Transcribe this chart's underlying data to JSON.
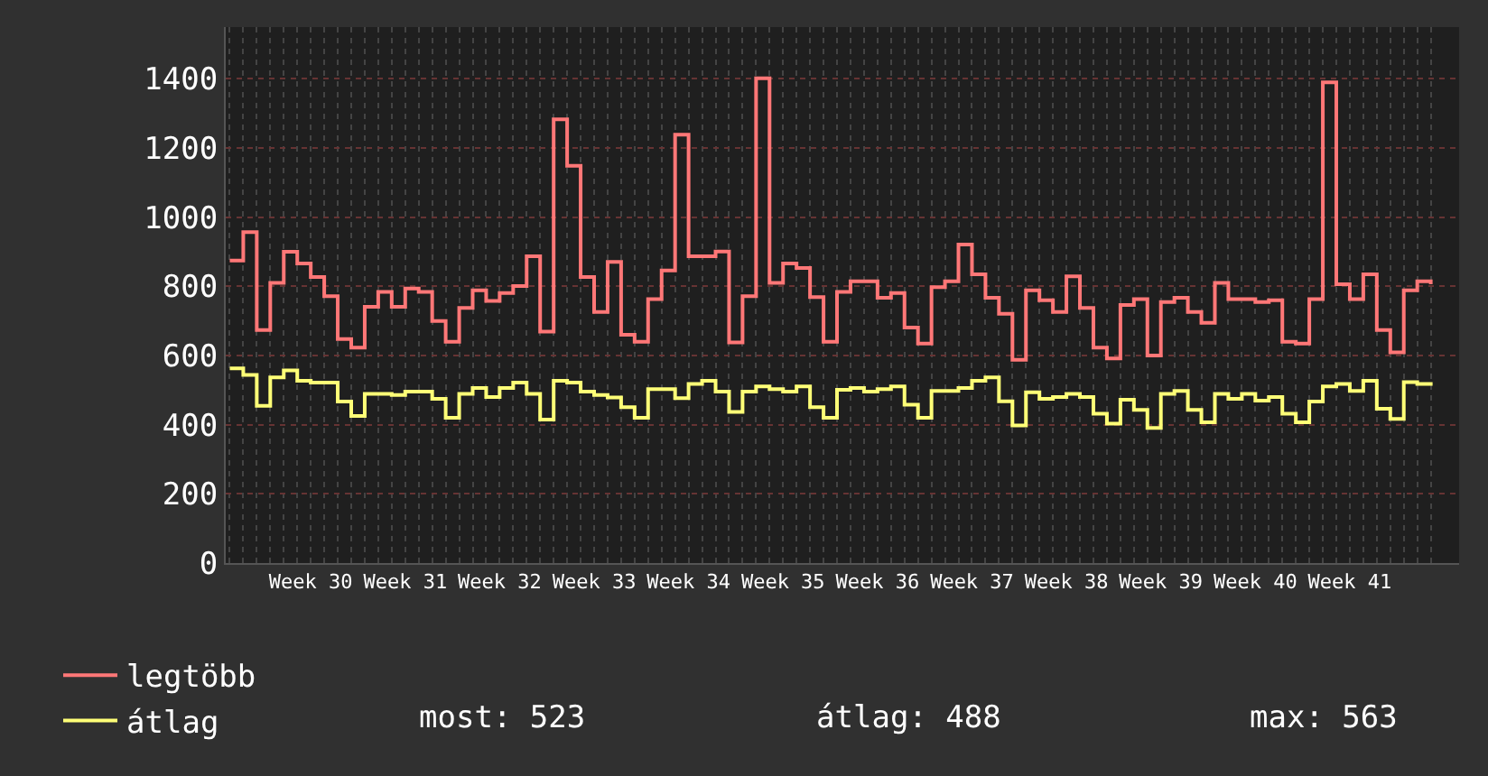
{
  "chart_data": {
    "type": "step",
    "categories": [
      null,
      null,
      null,
      null,
      null,
      null,
      "Week 30",
      null,
      null,
      null,
      null,
      null,
      null,
      "Week 31",
      null,
      null,
      null,
      null,
      null,
      null,
      "Week 32",
      null,
      null,
      null,
      null,
      null,
      null,
      "Week 33",
      null,
      null,
      null,
      null,
      null,
      null,
      "Week 34",
      null,
      null,
      null,
      null,
      null,
      null,
      "Week 35",
      null,
      null,
      null,
      null,
      null,
      null,
      "Week 36",
      null,
      null,
      null,
      null,
      null,
      null,
      "Week 37",
      null,
      null,
      null,
      null,
      null,
      null,
      "Week 38",
      null,
      null,
      null,
      null,
      null,
      null,
      "Week 39",
      null,
      null,
      null,
      null,
      null,
      null,
      "Week 40",
      null,
      null,
      null,
      null,
      null,
      null,
      "Week 41",
      null,
      null,
      null,
      null,
      null,
      null
    ],
    "series": [
      {
        "name": "legtöbb",
        "color": "#ff7777",
        "values": [
          875,
          957,
          674,
          810,
          900,
          866,
          827,
          772,
          648,
          623,
          741,
          784,
          741,
          794,
          784,
          700,
          640,
          738,
          789,
          758,
          781,
          801,
          887,
          669,
          1283,
          1149,
          827,
          726,
          871,
          660,
          640,
          763,
          846,
          1239,
          887,
          887,
          901,
          638,
          772,
          1402,
          810,
          866,
          853,
          769,
          640,
          784,
          815,
          815,
          767,
          781,
          681,
          635,
          798,
          815,
          921,
          835,
          767,
          721,
          588,
          789,
          760,
          726,
          829,
          738,
          623,
          592,
          746,
          763,
          600,
          755,
          767,
          726,
          695,
          810,
          763,
          763,
          755,
          760,
          640,
          635,
          763,
          1390,
          806,
          763,
          835,
          674,
          609,
          789,
          815,
          806
        ]
      },
      {
        "name": "átlag",
        "color": "#ffff77",
        "values": [
          563,
          544,
          455,
          537,
          557,
          527,
          522,
          522,
          467,
          425,
          489,
          489,
          486,
          496,
          496,
          475,
          420,
          489,
          506,
          480,
          506,
          522,
          489,
          415,
          527,
          522,
          496,
          486,
          479,
          451,
          420,
          503,
          503,
          477,
          518,
          527,
          496,
          437,
          496,
          511,
          503,
          496,
          511,
          451,
          420,
          501,
          506,
          496,
          503,
          511,
          458,
          420,
          498,
          498,
          506,
          527,
          537,
          468,
          398,
          494,
          475,
          480,
          489,
          480,
          432,
          403,
          472,
          443,
          391,
          489,
          498,
          443,
          407,
          489,
          475,
          489,
          470,
          480,
          432,
          407,
          467,
          511,
          518,
          498,
          527,
          446,
          417,
          523,
          518,
          523
        ]
      }
    ],
    "ylim": [
      0,
      1550
    ],
    "yticks": [
      0,
      200,
      400,
      600,
      800,
      1000,
      1200,
      1400
    ],
    "grid": true,
    "legend": "bottom left",
    "annotations": [
      "most: 523",
      "átlag: 488",
      "max: 563"
    ]
  }
}
